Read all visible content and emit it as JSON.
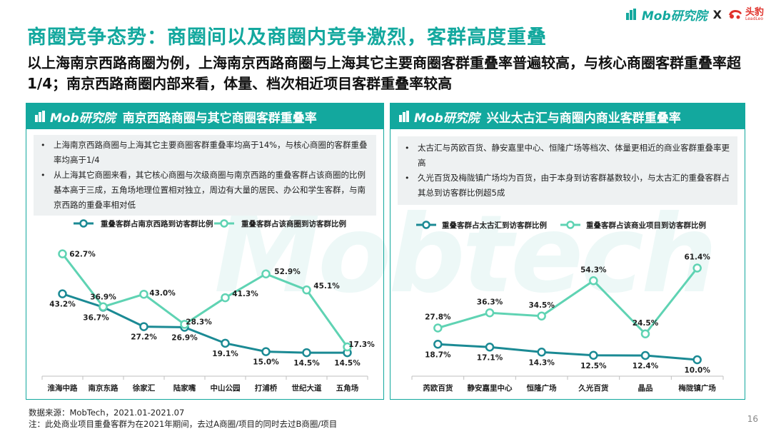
{
  "header": {
    "mob_brand": "Mob研究院",
    "separator": "X",
    "leadleo_cn": "头豹",
    "leadleo_en": "LeadLeo"
  },
  "title": "商圈竞争态势：商圈间以及商圈内竞争激烈，客群高度重叠",
  "subtitle": "以上海南京西路商圈为例，上海南京西路商圈与上海其它主要商圈客群重叠率普遍较高，与核心商圈客群重叠率超1/4；南京西路商圈内部来看，体量、档次相近项目客群重叠率较高",
  "watermark": "Mobtech",
  "left_panel": {
    "brand": "Mob研究院",
    "title": "南京西路商圈与其它商圈客群重叠率",
    "bullets": [
      "上海南京西路商圈与上海其它主要商圈客群重叠率均高于14%，与核心商圈的客群重叠率均高于1/4",
      "从上海其它商圈来看，其它核心商圈与次级商圈与南京西路的重叠客群占该商圈的比例基本高于三成，五角场地理位置相对独立，周边有大量的居民、办公和学生客群，与南京西路的重叠率相对低"
    ]
  },
  "right_panel": {
    "brand": "Mob研究院",
    "title": "兴业太古汇与商圈内商业客群重叠率",
    "bullets": [
      "太古汇与芮欧百货、静安嘉里中心、恒隆广场等档次、体量更相近的商业客群重叠率更高",
      "久光百货及梅陇镇广场均为百货，由于本身到访客群基数较小，与太古汇的重叠客群占其总到访客群比例超5成"
    ]
  },
  "chart_data": [
    {
      "type": "line",
      "categories": [
        "淮海中路",
        "南京东路",
        "徐家汇",
        "陆家嘴",
        "中山公园",
        "打浦桥",
        "世纪大道",
        "五角场"
      ],
      "series": [
        {
          "name": "重叠客群占南京西路到访客群比例",
          "values": [
            43.2,
            36.7,
            27.2,
            26.9,
            19.1,
            15.0,
            14.5,
            14.5
          ],
          "labels": [
            "43.2%",
            "36.7%",
            "27.2%",
            "26.9%",
            "19.1%",
            "15.0%",
            "14.5%",
            "14.5%"
          ],
          "color": "#1b8a94"
        },
        {
          "name": "重叠客群占该商圈到访客群比例",
          "values": [
            62.7,
            36.9,
            43.0,
            28.3,
            41.3,
            52.9,
            45.1,
            17.3
          ],
          "labels": [
            "62.7%",
            "36.9%",
            "43.0%",
            "28.3%",
            "41.3%",
            "52.9%",
            "45.1%",
            "17.3%"
          ],
          "color": "#5fd3b3"
        }
      ],
      "legend_position": "top",
      "grid": false
    },
    {
      "type": "line",
      "categories": [
        "芮欧百货",
        "静安嘉里中心",
        "恒隆广场",
        "久光百货",
        "晶品",
        "梅陇镇广场"
      ],
      "series": [
        {
          "name": "重叠客群占太古汇到访客群比例",
          "values": [
            18.7,
            17.1,
            14.3,
            12.5,
            12.4,
            10.0
          ],
          "labels": [
            "18.7%",
            "17.1%",
            "14.3%",
            "12.5%",
            "12.4%",
            "10.0%"
          ],
          "color": "#1b8a94"
        },
        {
          "name": "重叠客群占该商业项目到访客群比例",
          "values": [
            27.8,
            36.3,
            34.5,
            54.3,
            24.5,
            61.4
          ],
          "labels": [
            "27.8%",
            "36.3%",
            "34.5%",
            "54.3%",
            "24.5%",
            "61.4%"
          ],
          "color": "#5fd3b3"
        }
      ],
      "legend_position": "top",
      "grid": false
    }
  ],
  "footer": {
    "source": "数据来源：MobTech，2021.01-2021.07",
    "note": "注：此处商业项目重叠客群为在2021年期间，去过A商圈/项目的同时去过B商圈/项目",
    "page_number": "16"
  }
}
